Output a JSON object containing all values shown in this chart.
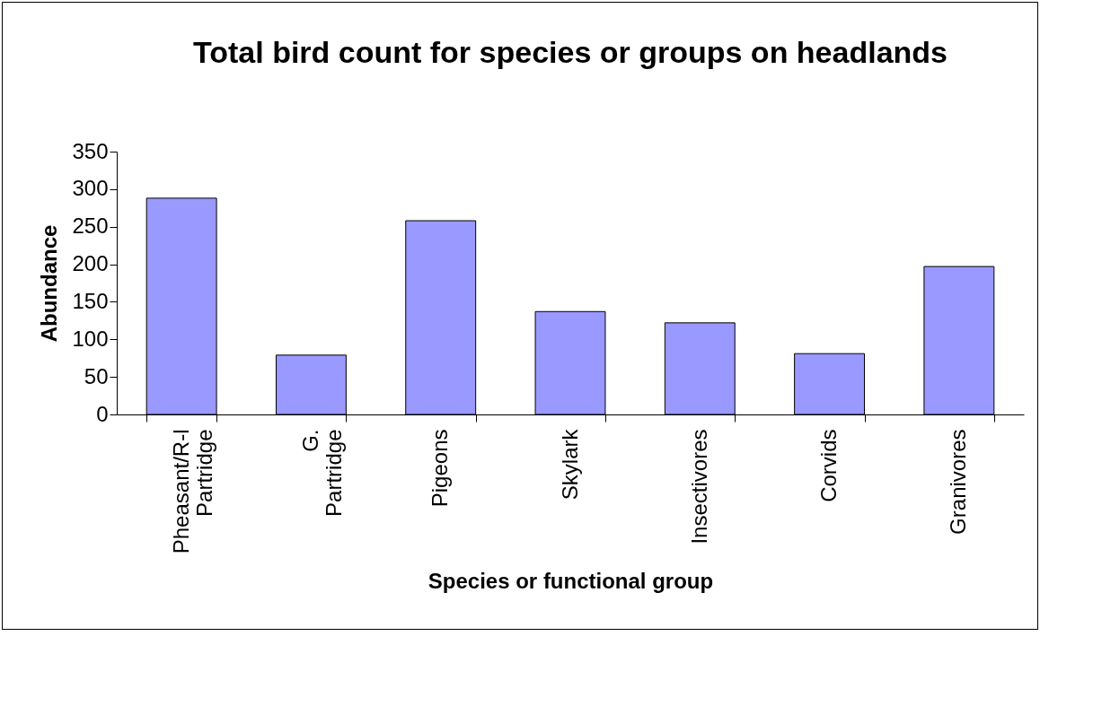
{
  "chart_data": {
    "type": "bar",
    "title": "Total bird count for species or groups on headlands",
    "xlabel": "Species or functional group",
    "ylabel": "Abundance",
    "categories": [
      "Pheasant/R-l Partridge",
      "G. Partridge",
      "Pigeons",
      "Skylark",
      "Insectivores",
      "Corvids",
      "Granivores"
    ],
    "values": [
      288,
      79,
      258,
      137,
      122,
      81,
      197
    ],
    "color": "#9999ff",
    "ylim": [
      0,
      350
    ],
    "yticks": [
      0,
      50,
      100,
      150,
      200,
      250,
      300,
      350
    ],
    "grid": false
  }
}
